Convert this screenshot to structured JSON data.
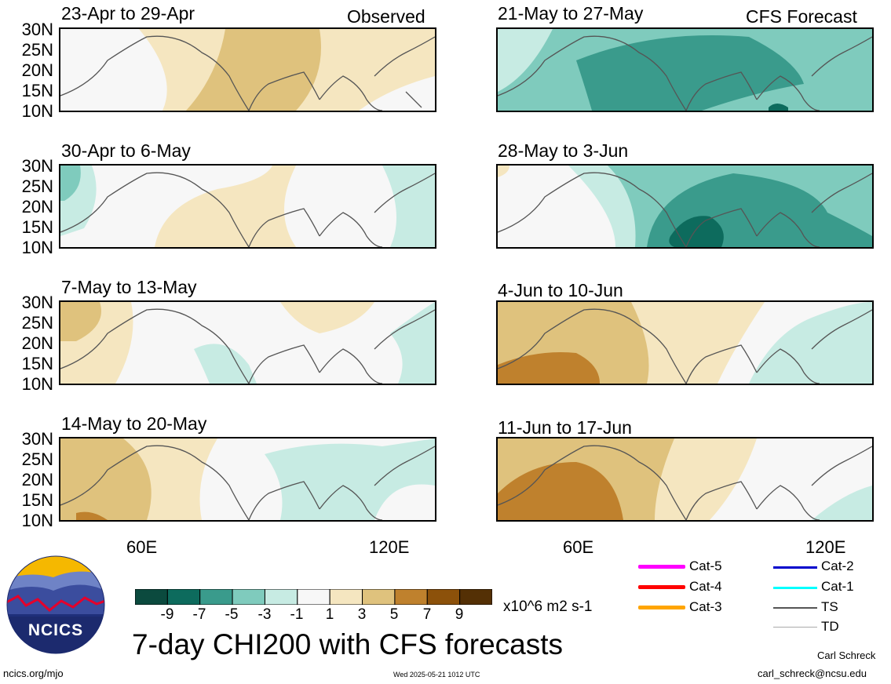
{
  "header": {
    "left_tag": "Observed",
    "right_tag": "CFS Forecast"
  },
  "panels": [
    {
      "title": "23-Apr to 29-Apr"
    },
    {
      "title": "30-Apr to 6-May"
    },
    {
      "title": "7-May to 13-May"
    },
    {
      "title": "14-May to 20-May"
    },
    {
      "title": "21-May to 27-May"
    },
    {
      "title": "28-May to 3-Jun"
    },
    {
      "title": "4-Jun to 10-Jun"
    },
    {
      "title": "11-Jun to 17-Jun"
    }
  ],
  "lat_labels": [
    "30N",
    "25N",
    "20N",
    "15N",
    "10N"
  ],
  "lon_labels": [
    "60E",
    "120E"
  ],
  "colorbar": {
    "colors": [
      "#0b4a3e",
      "#0d6b5d",
      "#3a9b8c",
      "#7fcbbd",
      "#c7ebe3",
      "#f7f7f7",
      "#f5e6c0",
      "#dfc27d",
      "#bf812d",
      "#8c510a",
      "#543005"
    ],
    "ticks": [
      "-9",
      "-7",
      "-5",
      "-3",
      "-1",
      "1",
      "3",
      "5",
      "7",
      "9"
    ],
    "units": "x10^6 m2 s-1"
  },
  "title": "7-day CHI200 with CFS forecasts",
  "legend": [
    {
      "label": "Cat-5",
      "color": "#ff00ff"
    },
    {
      "label": "Cat-4",
      "color": "#ff0000"
    },
    {
      "label": "Cat-3",
      "color": "#ffa500"
    },
    {
      "label": "Cat-2",
      "color": "#0000cc"
    },
    {
      "label": "Cat-1",
      "color": "#00ffff"
    },
    {
      "label": "TS",
      "color": "#555555"
    },
    {
      "label": "TD",
      "color": "#aaaaaa"
    }
  ],
  "logo": {
    "text": "NCICS"
  },
  "footer": {
    "url": "ncics.org/mjo",
    "timestamp": "Wed 2025-05-21 1012 UTC",
    "author": "Carl Schreck",
    "email": "carl_schreck@ncsu.edu"
  }
}
